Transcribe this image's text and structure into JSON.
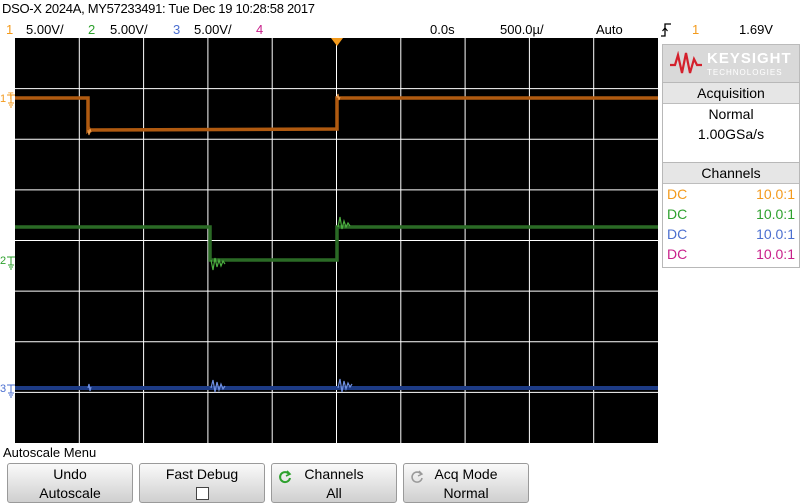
{
  "header": {
    "title": "DSO-X 2024A, MY57233491: Tue Dec 19 10:28:58 2017",
    "channels": [
      {
        "num": "1",
        "scale": "5.00V/",
        "color": "#f39a1c"
      },
      {
        "num": "2",
        "scale": "5.00V/",
        "color": "#2ea12e"
      },
      {
        "num": "3",
        "scale": "5.00V/",
        "color": "#4b6fd0"
      },
      {
        "num": "4",
        "scale": "",
        "color": "#c8208a"
      }
    ],
    "time_offset": "0.0s",
    "time_scale": "500.0µ/",
    "trigger_mode": "Auto",
    "trigger_edge_icon": "rising-edge",
    "trigger_source": "1",
    "trigger_level": "1.69V"
  },
  "screen": {
    "markers": [
      {
        "label": "1",
        "color": "#f39a1c"
      },
      {
        "label": "2",
        "color": "#2ea12e"
      },
      {
        "label": "3",
        "color": "#4b6fd0"
      }
    ],
    "trigger_level_marker": "T"
  },
  "panel": {
    "logo_text": "KEYSIGHT",
    "logo_sub": "TECHNOLOGIES",
    "acquisition_title": "Acquisition",
    "acquisition_mode": "Normal",
    "sample_rate": "1.00GSa/s",
    "channels_title": "Channels",
    "channels": [
      {
        "coupling": "DC",
        "probe": "10.0:1",
        "color": "#f39a1c"
      },
      {
        "coupling": "DC",
        "probe": "10.0:1",
        "color": "#2ea12e"
      },
      {
        "coupling": "DC",
        "probe": "10.0:1",
        "color": "#4b6fd0"
      },
      {
        "coupling": "DC",
        "probe": "10.0:1",
        "color": "#c8208a"
      }
    ]
  },
  "softkeys": {
    "menu_title": "Autoscale Menu",
    "keys": [
      {
        "line1": "Undo",
        "line2": "Autoscale"
      },
      {
        "line1": "Fast Debug",
        "line2": ""
      },
      {
        "line1": "Channels",
        "line2": "All"
      },
      {
        "line1": "Acq Mode",
        "line2": "Normal"
      }
    ]
  },
  "colors": {
    "ch1_trace": "#b05a10",
    "ch2_trace": "#2a6a25",
    "ch3_trace": "#1d3b85",
    "grid": "#ffffff"
  }
}
